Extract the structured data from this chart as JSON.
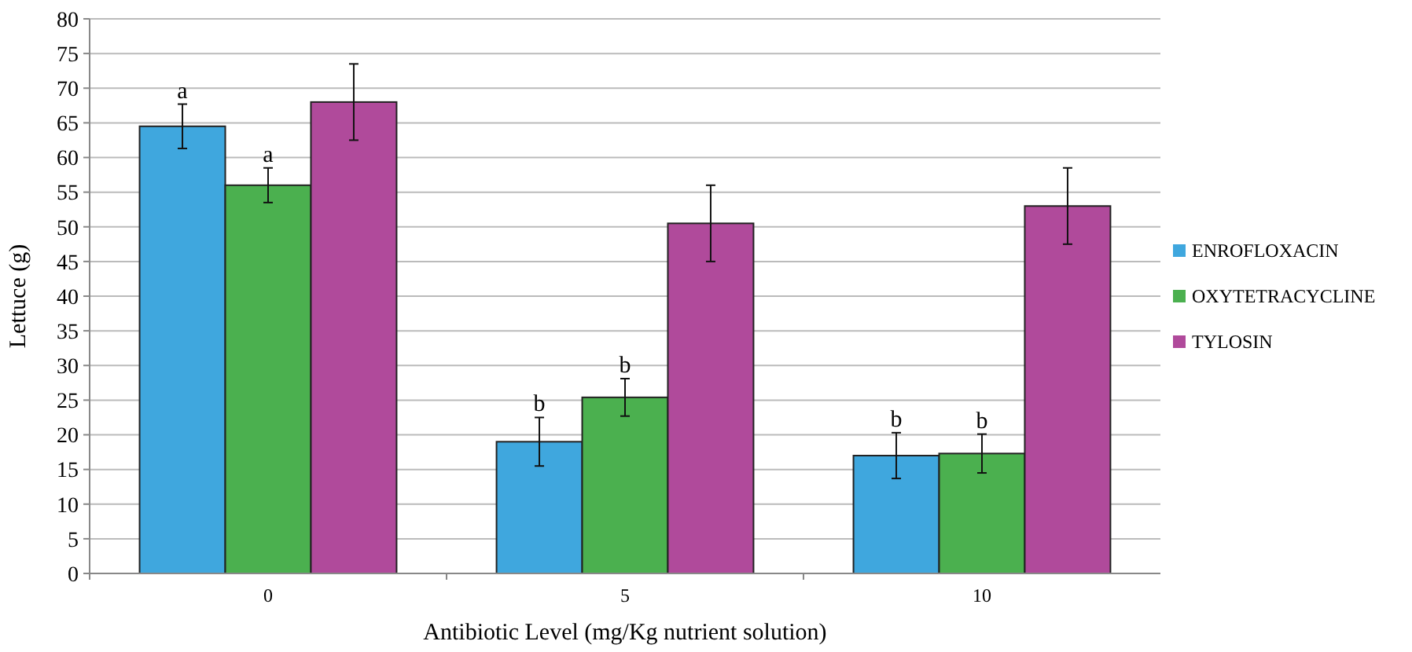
{
  "chart_data": {
    "type": "bar",
    "xlabel": "Antibiotic Level (mg/Kg nutrient solution)",
    "ylabel": "Lettuce (g)",
    "categories": [
      "0",
      "5",
      "10"
    ],
    "series": [
      {
        "name": "ENROFLOXACIN",
        "color": "#3fa7de",
        "values": [
          64.5,
          19,
          17
        ],
        "errors": [
          3.2,
          3.5,
          3.3
        ],
        "value_labels": [
          "a",
          "b",
          "b"
        ]
      },
      {
        "name": "OXYTETRACYCLINE",
        "color": "#4bb04f",
        "values": [
          56,
          25.4,
          17.3
        ],
        "errors": [
          2.5,
          2.7,
          2.8
        ],
        "value_labels": [
          "a",
          "b",
          "b"
        ]
      },
      {
        "name": "TYLOSIN",
        "color": "#b04a9b",
        "values": [
          68,
          50.5,
          53
        ],
        "errors": [
          5.5,
          5.5,
          5.5
        ]
      }
    ],
    "ylim": [
      0,
      80
    ],
    "yticks": [
      0,
      5,
      10,
      15,
      20,
      25,
      30,
      35,
      40,
      45,
      50,
      55,
      60,
      65,
      70,
      75,
      80
    ],
    "grid": "y",
    "legend": "right"
  }
}
